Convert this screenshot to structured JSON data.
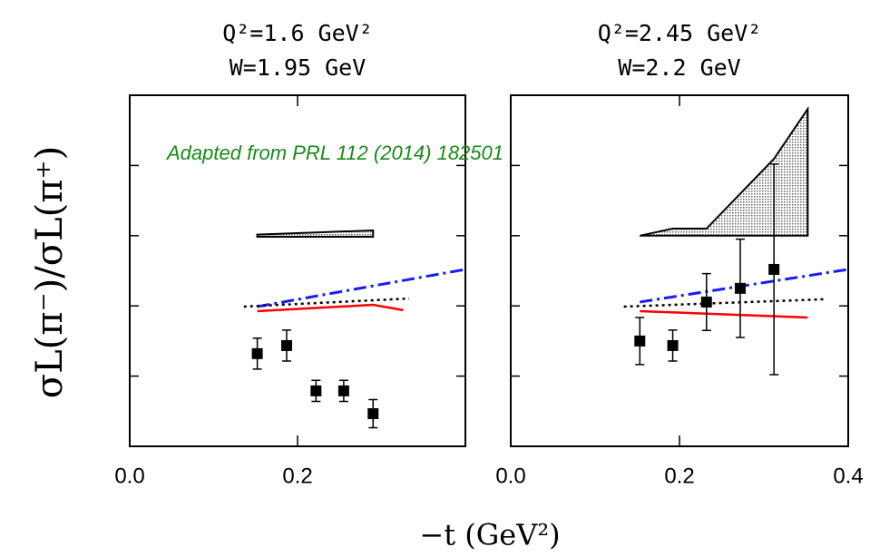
{
  "figure": {
    "ylabel": "σL(π⁻)/σL(π⁺)",
    "xlabel": "−t (GeV²)",
    "annotation": "Adapted from PRL 112 (2014) 182501"
  },
  "chart_data": [
    {
      "type": "scatter",
      "title": "Q²=1.6 GeV²",
      "subtitle": "W=1.95 GeV",
      "xlim": [
        0,
        0.4
      ],
      "xticks": [
        {
          "value": 0,
          "label": "0.0"
        },
        0.2
      ],
      "ylim": [
        0,
        1
      ],
      "yticks": [
        0.2,
        0.4,
        0.6,
        0.8
      ],
      "ytick_labels": false,
      "series": [
        {
          "kind": "band",
          "color": "#888888",
          "x": [
            0.152,
            0.29
          ],
          "values": [
            0.603,
            0.615
          ],
          "base": [
            0.597,
            0.597
          ]
        },
        {
          "kind": "line",
          "style": "dashdot",
          "color": "#1a1aff",
          "x": [
            0.152,
            0.4
          ],
          "values": [
            0.398,
            0.504
          ]
        },
        {
          "kind": "line",
          "style": "dotted",
          "color": "#000000",
          "x": [
            0.136,
            0.333
          ],
          "values": [
            0.398,
            0.421
          ]
        },
        {
          "kind": "line",
          "style": "solid",
          "color": "#ff0000",
          "x": [
            0.152,
            0.29,
            0.326
          ],
          "values": [
            0.385,
            0.403,
            0.388
          ]
        },
        {
          "kind": "points",
          "color": "#000000",
          "x": [
            0.152,
            0.187,
            0.222,
            0.255,
            0.29
          ],
          "values": [
            0.264,
            0.287,
            0.158,
            0.158,
            0.093
          ],
          "errors": [
            0.044,
            0.044,
            0.03,
            0.03,
            0.04
          ]
        }
      ]
    },
    {
      "type": "scatter",
      "title": "Q²=2.45 GeV²",
      "subtitle": "W=2.2 GeV",
      "xlim": [
        0,
        0.4
      ],
      "xticks": [
        {
          "value": 0,
          "label": "0.0"
        },
        0.2,
        0.4
      ],
      "ylim": [
        0,
        1
      ],
      "yticks": [
        0.2,
        0.4,
        0.6,
        0.8
      ],
      "ytick_labels": false,
      "series": [
        {
          "kind": "band",
          "color": "#888888",
          "x": [
            0.153,
            0.192,
            0.232,
            0.312,
            0.352
          ],
          "values": [
            0.6,
            0.62,
            0.62,
            0.819,
            0.961
          ],
          "base": [
            0.6,
            0.6,
            0.6,
            0.6,
            0.6
          ]
        },
        {
          "kind": "line",
          "style": "dashdot",
          "color": "#1a1aff",
          "x": [
            0.153,
            0.4
          ],
          "values": [
            0.411,
            0.504
          ]
        },
        {
          "kind": "line",
          "style": "dotted",
          "color": "#000000",
          "x": [
            0.134,
            0.373
          ],
          "values": [
            0.398,
            0.419
          ]
        },
        {
          "kind": "line",
          "style": "solid",
          "color": "#ff0000",
          "x": [
            0.153,
            0.352
          ],
          "values": [
            0.385,
            0.367
          ]
        },
        {
          "kind": "points",
          "color": "#000000",
          "x": [
            0.153,
            0.192,
            0.232,
            0.272,
            0.312
          ],
          "values": [
            0.3,
            0.287,
            0.411,
            0.45,
            0.504
          ],
          "errors": [
            0.067,
            0.044,
            0.081,
            0.14,
            0.3
          ]
        }
      ]
    }
  ]
}
